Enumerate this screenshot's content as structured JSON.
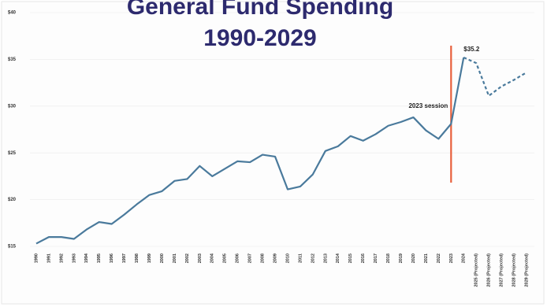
{
  "chart_data": {
    "type": "line",
    "title": "General Fund Spending",
    "subtitle": "1990-2029",
    "categories": [
      "1990",
      "1991",
      "1992",
      "1993",
      "1994",
      "1995",
      "1996",
      "1997",
      "1998",
      "1999",
      "2000",
      "2001",
      "2002",
      "2003",
      "2004",
      "2005",
      "2006",
      "2007",
      "2008",
      "2009",
      "2010",
      "2011",
      "2012",
      "2013",
      "2014",
      "2015",
      "2016",
      "2017",
      "2018",
      "2019",
      "2020",
      "2021",
      "2022",
      "2023",
      "2024",
      "2025 (Projected)",
      "2026 (Projected)",
      "2027 (Projected)",
      "2028 (Projected)",
      "2029 (Projected)"
    ],
    "values": [
      15.3,
      16.0,
      16.0,
      15.8,
      16.8,
      17.6,
      17.4,
      18.4,
      19.5,
      20.5,
      20.9,
      22.0,
      22.2,
      23.6,
      22.5,
      23.3,
      24.1,
      24.0,
      24.8,
      24.6,
      21.1,
      21.4,
      22.7,
      25.2,
      25.7,
      26.8,
      26.3,
      27.0,
      27.9,
      28.3,
      28.8,
      27.4,
      26.5,
      28.1,
      35.2,
      34.6,
      31.1,
      32.1,
      32.8,
      33.6
    ],
    "value_labels": [
      null,
      null,
      null,
      null,
      null,
      null,
      null,
      null,
      null,
      null,
      null,
      null,
      null,
      null,
      null,
      null,
      null,
      null,
      null,
      null,
      null,
      null,
      null,
      null,
      null,
      null,
      null,
      null,
      null,
      null,
      null,
      null,
      null,
      null,
      "$35.2",
      null,
      null,
      null,
      null,
      null
    ],
    "color": "#4a7a9c",
    "dashed_from": "2024",
    "vline": {
      "category": "2023",
      "color": "#e8603c",
      "label": "2023 session"
    },
    "ylim": [
      15,
      40
    ],
    "yticks": [
      {
        "value": 15,
        "label": "$15"
      },
      {
        "value": 20,
        "label": "$20"
      },
      {
        "value": 25,
        "label": "$25"
      },
      {
        "value": 30,
        "label": "$30"
      },
      {
        "value": 35,
        "label": "$35"
      },
      {
        "value": 40,
        "label": "$40"
      }
    ],
    "grid": true
  }
}
